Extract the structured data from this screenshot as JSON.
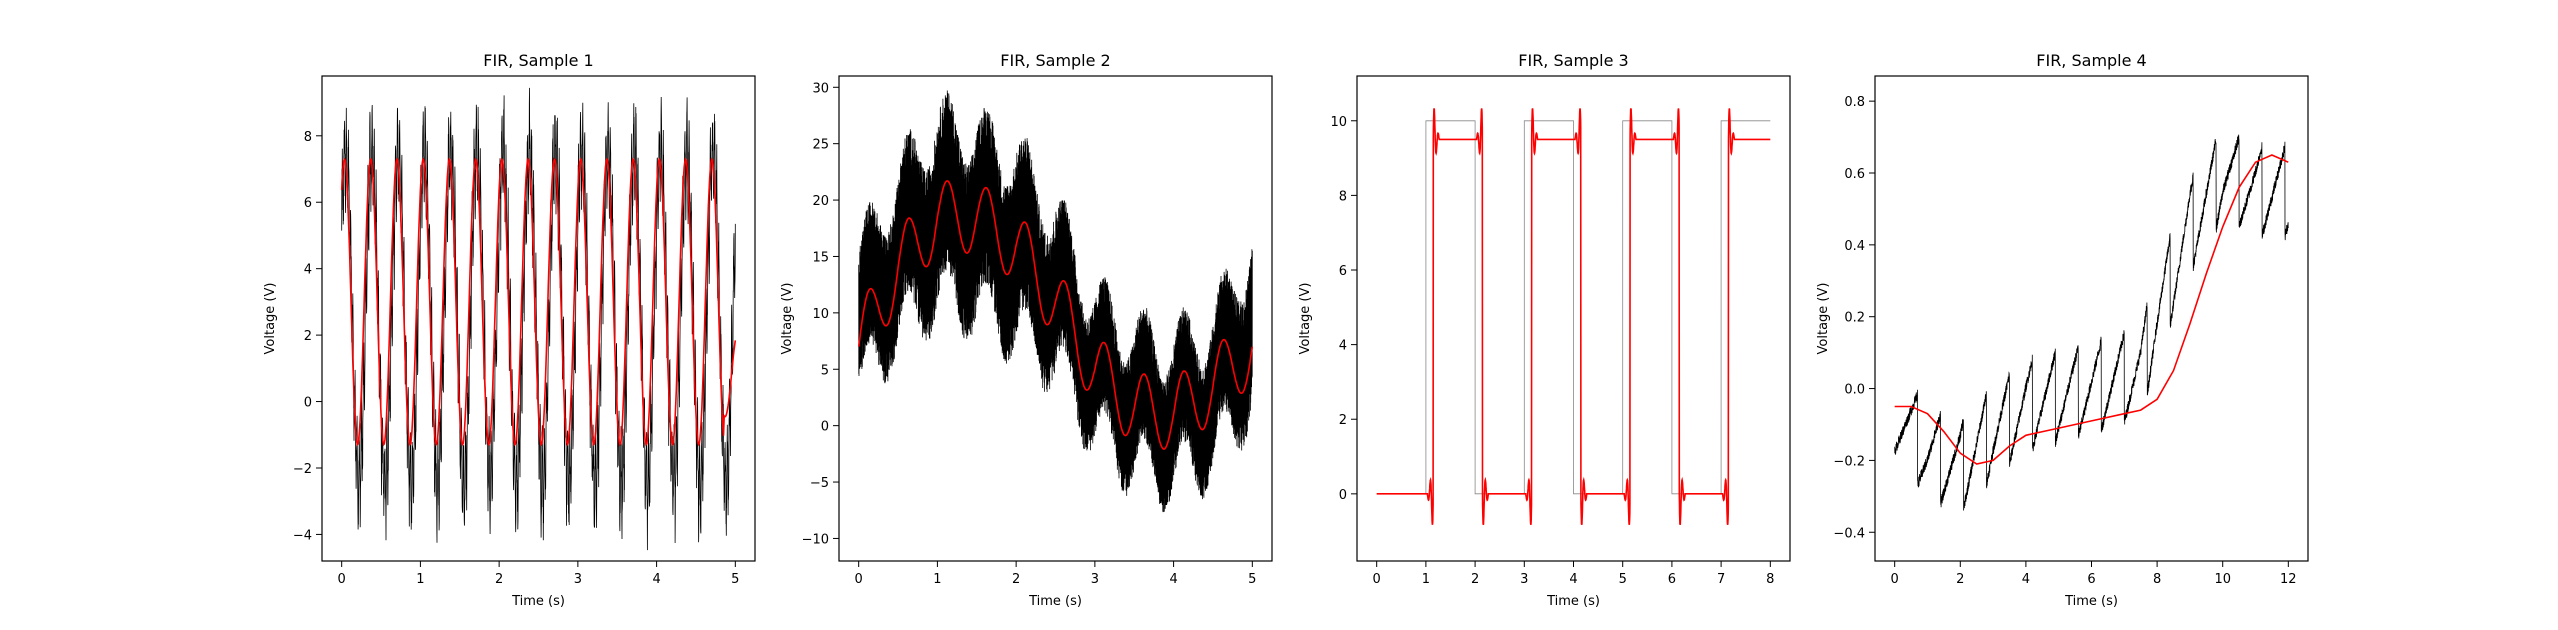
{
  "colors": {
    "raw_signal": "#000000",
    "filtered_signal": "#ff0000",
    "axes": "#000000",
    "background": "#ffffff"
  },
  "chart_data": [
    {
      "type": "line",
      "title": "FIR, Sample 1",
      "xlabel": "Time (s)",
      "ylabel": "Voltage (V)",
      "xlim": [
        -0.25,
        5.25
      ],
      "ylim": [
        -4.8,
        9.8
      ],
      "xticks": [
        0,
        1,
        2,
        3,
        4,
        5
      ],
      "yticks": [
        -4,
        -2,
        0,
        2,
        4,
        6,
        8
      ],
      "grid": false,
      "series": [
        {
          "role": "raw",
          "kind": "noisy_sine",
          "color": "#000000",
          "x_range": [
            0,
            5
          ],
          "frequency_hz": 3,
          "center": 2.5,
          "amplitude": 5.0,
          "noise": 1.8
        },
        {
          "role": "filtered",
          "kind": "sine",
          "color": "#ff0000",
          "x_range": [
            0,
            5
          ],
          "frequency_hz": 3,
          "center": 3.0,
          "amplitude": 4.3,
          "end_value": -0.1
        }
      ]
    },
    {
      "type": "line",
      "title": "FIR, Sample 2",
      "xlabel": "Time (s)",
      "ylabel": "Voltage (V)",
      "xlim": [
        -0.25,
        5.25
      ],
      "ylim": [
        -12,
        31
      ],
      "xticks": [
        0,
        1,
        2,
        3,
        4,
        5
      ],
      "yticks": [
        -10,
        -5,
        0,
        5,
        10,
        15,
        20,
        25,
        30
      ],
      "grid": false,
      "series": [
        {
          "role": "raw",
          "kind": "band",
          "color": "#000000",
          "x": [
            0,
            0.5,
            1,
            1.5,
            2,
            2.5,
            3,
            3.5,
            4,
            4.5,
            5
          ],
          "mid": [
            9,
            15,
            19,
            18,
            16,
            12,
            5,
            2,
            1,
            3,
            9
          ],
          "half_width": [
            6,
            7,
            8,
            8,
            8,
            7,
            6,
            6,
            6,
            6,
            7
          ]
        },
        {
          "role": "filtered",
          "kind": "sine_on_trend",
          "color": "#ff0000",
          "x": [
            0,
            0.5,
            1,
            1.5,
            2,
            2.5,
            3,
            3.5,
            4,
            4.5,
            5
          ],
          "trend": [
            7,
            14,
            18.5,
            18.5,
            16,
            11,
            5,
            1.5,
            1,
            3.5,
            7
          ],
          "wiggle_amplitude": 3.2,
          "wiggle_frequency_hz": 2
        }
      ]
    },
    {
      "type": "line",
      "title": "FIR, Sample 3",
      "xlabel": "Time (s)",
      "ylabel": "Voltage (V)",
      "xlim": [
        -0.4,
        8.4
      ],
      "ylim": [
        -1.8,
        11.2
      ],
      "xticks": [
        0,
        1,
        2,
        3,
        4,
        5,
        6,
        7,
        8
      ],
      "yticks": [
        0,
        2,
        4,
        6,
        8,
        10
      ],
      "grid": false,
      "series": [
        {
          "role": "raw",
          "kind": "square",
          "color": "#888888",
          "low": 0,
          "high": 10,
          "edges": [
            [
              1.0,
              "up"
            ],
            [
              2.0,
              "down"
            ],
            [
              3.0,
              "up"
            ],
            [
              4.0,
              "down"
            ],
            [
              5.0,
              "up"
            ],
            [
              6.0,
              "down"
            ],
            [
              7.0,
              "up"
            ]
          ],
          "x_range": [
            0,
            8
          ]
        },
        {
          "role": "filtered",
          "kind": "square_with_ringing",
          "color": "#ff0000",
          "low": 0,
          "high": 9.5,
          "delay": 0.15,
          "overshoot": 1.2,
          "edges": [
            [
              1.0,
              "up"
            ],
            [
              2.0,
              "down"
            ],
            [
              3.0,
              "up"
            ],
            [
              4.0,
              "down"
            ],
            [
              5.0,
              "up"
            ],
            [
              6.0,
              "down"
            ],
            [
              7.0,
              "up"
            ]
          ],
          "x_range": [
            0,
            8
          ]
        }
      ]
    },
    {
      "type": "line",
      "title": "FIR, Sample 4",
      "xlabel": "Time (s)",
      "ylabel": "Voltage (V)",
      "xlim": [
        -0.6,
        12.6
      ],
      "ylim": [
        -0.48,
        0.87
      ],
      "xticks": [
        0,
        2,
        4,
        6,
        8,
        10,
        12
      ],
      "yticks": [
        -0.4,
        -0.2,
        0.0,
        0.2,
        0.4,
        0.6,
        0.8
      ],
      "ytick_labels": [
        "−0.4",
        "−0.2",
        "0.0",
        "0.2",
        "0.4",
        "0.6",
        "0.8"
      ],
      "grid": false,
      "series": [
        {
          "role": "raw",
          "kind": "sawtooth_on_trend",
          "color": "#000000",
          "x": [
            0,
            1,
            2,
            3,
            4,
            5,
            6,
            7,
            7.5,
            8,
            9,
            10,
            11,
            12
          ],
          "trend": [
            -0.05,
            -0.18,
            -0.22,
            -0.12,
            -0.05,
            -0.02,
            0.0,
            0.03,
            0.05,
            0.2,
            0.45,
            0.6,
            0.55,
            0.55
          ],
          "tooth_height": 0.25,
          "tooth_period_s": 0.7
        },
        {
          "role": "filtered",
          "kind": "polyline",
          "color": "#ff0000",
          "x": [
            0,
            0.5,
            1,
            1.5,
            2,
            2.5,
            3,
            3.5,
            4,
            5,
            6,
            7,
            7.5,
            8,
            8.5,
            9,
            9.5,
            10,
            10.5,
            11,
            11.5,
            12
          ],
          "y": [
            -0.05,
            -0.05,
            -0.07,
            -0.12,
            -0.18,
            -0.21,
            -0.2,
            -0.16,
            -0.13,
            -0.11,
            -0.09,
            -0.07,
            -0.06,
            -0.03,
            0.05,
            0.18,
            0.32,
            0.45,
            0.56,
            0.63,
            0.65,
            0.63
          ]
        }
      ]
    }
  ]
}
